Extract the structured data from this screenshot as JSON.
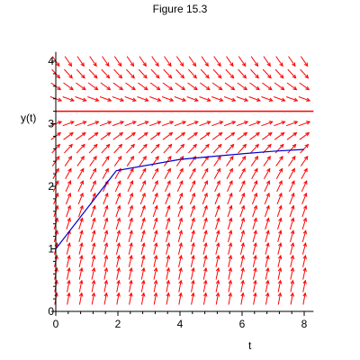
{
  "figure": {
    "title": "Figure 15.3"
  },
  "chart_data": {
    "type": "line",
    "title": "Figure 15.3",
    "xlabel": "t",
    "ylabel": "y(t)",
    "xlim": [
      0,
      8.3
    ],
    "ylim": [
      0,
      4.15
    ],
    "x_ticks": [
      0,
      2,
      4,
      6,
      8
    ],
    "y_ticks": [
      0,
      1,
      2,
      3,
      4
    ],
    "grid": false,
    "colors": {
      "field": "#ff0000",
      "solution": "#0000cc",
      "equilibrium": "#ff0000",
      "axes": "#000000"
    },
    "direction_field": {
      "t_values": [
        0,
        0.4,
        0.8,
        1.2,
        1.6,
        2.0,
        2.4,
        2.8,
        3.2,
        3.6,
        4.0,
        4.4,
        4.8,
        5.2,
        5.6,
        6.0,
        6.4,
        6.8,
        7.2,
        7.6,
        8.0
      ],
      "y_values": [
        0.2,
        0.4,
        0.6,
        0.8,
        1.0,
        1.2,
        1.4,
        1.6,
        1.8,
        2.0,
        2.2,
        2.4,
        2.6,
        2.8,
        3.0,
        3.4,
        3.6,
        3.8,
        4.0
      ],
      "equilibrium_y": 3.2
    },
    "series": [
      {
        "x": [
          0,
          1.95,
          4.0,
          6.0,
          7.0,
          8.0
        ],
        "y": [
          1.0,
          2.25,
          2.43,
          2.52,
          2.56,
          2.59
        ]
      }
    ],
    "equilibrium_line": {
      "y": 3.2
    }
  }
}
